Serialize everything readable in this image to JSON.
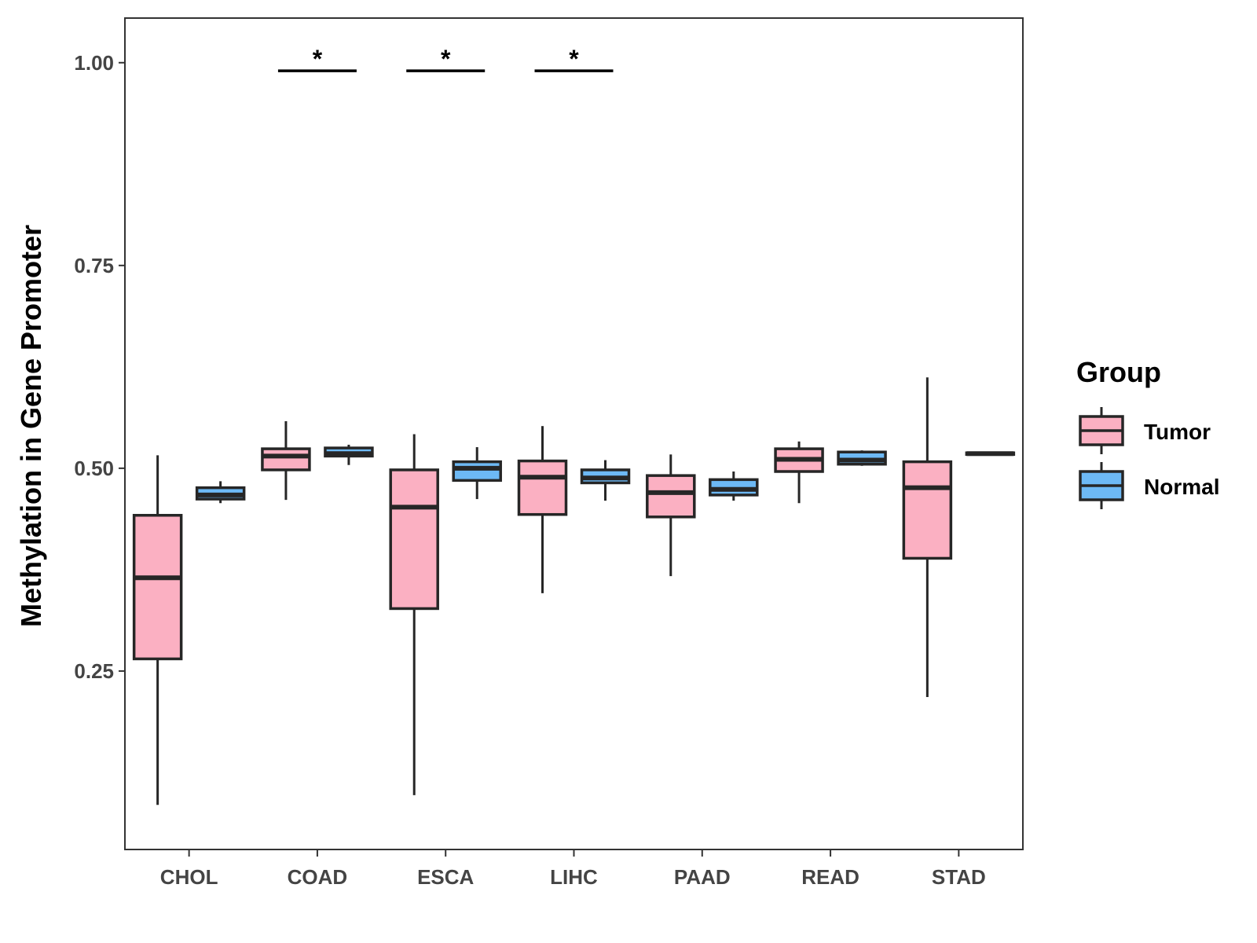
{
  "chart_data": {
    "type": "boxplot",
    "title": "",
    "xlabel": "",
    "ylabel": "Methylation in Gene Promoter",
    "ylim": [
      0.03,
      1.055
    ],
    "yticks": [
      0.25,
      0.5,
      0.75,
      1.0
    ],
    "ytick_labels": [
      "0.25",
      "0.50",
      "0.75",
      "1.00"
    ],
    "categories": [
      "CHOL",
      "COAD",
      "ESCA",
      "LIHC",
      "PAAD",
      "READ",
      "STAD"
    ],
    "grid": false,
    "legend": {
      "title": "Group",
      "position": "right",
      "entries": [
        {
          "name": "Tumor",
          "color": "#fbb0c2"
        },
        {
          "name": "Normal",
          "color": "#6db9f5"
        }
      ]
    },
    "series": [
      {
        "name": "Tumor",
        "color": "#fbb0c2",
        "boxes": [
          {
            "min": 0.085,
            "q1": 0.265,
            "median": 0.365,
            "q3": 0.442,
            "max": 0.516
          },
          {
            "min": 0.461,
            "q1": 0.498,
            "median": 0.515,
            "q3": 0.524,
            "max": 0.558
          },
          {
            "min": 0.097,
            "q1": 0.327,
            "median": 0.452,
            "q3": 0.498,
            "max": 0.542
          },
          {
            "min": 0.346,
            "q1": 0.443,
            "median": 0.489,
            "q3": 0.509,
            "max": 0.552
          },
          {
            "min": 0.367,
            "q1": 0.44,
            "median": 0.47,
            "q3": 0.491,
            "max": 0.517
          },
          {
            "min": 0.457,
            "q1": 0.496,
            "median": 0.511,
            "q3": 0.524,
            "max": 0.533
          },
          {
            "min": 0.218,
            "q1": 0.389,
            "median": 0.476,
            "q3": 0.508,
            "max": 0.612
          }
        ]
      },
      {
        "name": "Normal",
        "color": "#6db9f5",
        "boxes": [
          {
            "min": 0.457,
            "q1": 0.462,
            "median": 0.467,
            "q3": 0.476,
            "max": 0.484
          },
          {
            "min": 0.504,
            "q1": 0.515,
            "median": 0.518,
            "q3": 0.525,
            "max": 0.529
          },
          {
            "min": 0.462,
            "q1": 0.485,
            "median": 0.5,
            "q3": 0.508,
            "max": 0.526
          },
          {
            "min": 0.46,
            "q1": 0.482,
            "median": 0.488,
            "q3": 0.498,
            "max": 0.51
          },
          {
            "min": 0.46,
            "q1": 0.467,
            "median": 0.474,
            "q3": 0.486,
            "max": 0.496
          },
          {
            "min": 0.503,
            "q1": 0.505,
            "median": 0.51,
            "q3": 0.52,
            "max": 0.522
          },
          {
            "min": 0.517,
            "q1": 0.517,
            "median": 0.518,
            "q3": 0.519,
            "max": 0.519
          }
        ]
      }
    ],
    "annotations": [
      {
        "category": "COAD",
        "text": "*",
        "y": 0.99
      },
      {
        "category": "ESCA",
        "text": "*",
        "y": 0.99
      },
      {
        "category": "LIHC",
        "text": "*",
        "y": 0.99
      }
    ]
  }
}
